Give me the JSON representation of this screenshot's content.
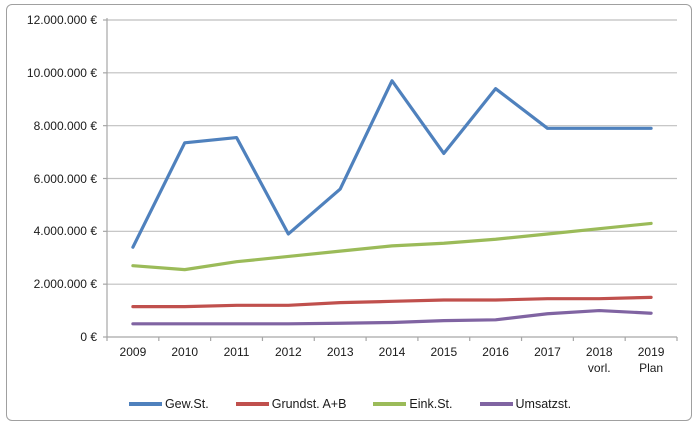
{
  "chart_data": {
    "type": "line",
    "title": "",
    "xlabel": "",
    "ylabel": "",
    "grid": true,
    "legend_position": "bottom",
    "categories": [
      {
        "label": "2009",
        "sublabel": ""
      },
      {
        "label": "2010",
        "sublabel": ""
      },
      {
        "label": "2011",
        "sublabel": ""
      },
      {
        "label": "2012",
        "sublabel": ""
      },
      {
        "label": "2013",
        "sublabel": ""
      },
      {
        "label": "2014",
        "sublabel": ""
      },
      {
        "label": "2015",
        "sublabel": ""
      },
      {
        "label": "2016",
        "sublabel": ""
      },
      {
        "label": "2017",
        "sublabel": ""
      },
      {
        "label": "2018",
        "sublabel": "vorl."
      },
      {
        "label": "2019",
        "sublabel": "Plan"
      }
    ],
    "y_axis": {
      "min": 0,
      "max": 12000000,
      "step": 2000000,
      "tick_labels": [
        "12.000.000 €",
        "10.000.000 €",
        "8.000.000 €",
        "6.000.000 €",
        "4.000.000 €",
        "2.000.000 €",
        "0 €"
      ]
    },
    "series": [
      {
        "name": "Gew.St.",
        "color": "#4F81BD",
        "values": [
          3400000,
          7350000,
          7550000,
          3900000,
          5600000,
          9700000,
          6950000,
          9400000,
          7900000,
          7900000,
          7900000
        ]
      },
      {
        "name": "Grundst. A+B",
        "color": "#C0504D",
        "values": [
          1150000,
          1150000,
          1200000,
          1200000,
          1300000,
          1350000,
          1400000,
          1400000,
          1450000,
          1450000,
          1500000
        ]
      },
      {
        "name": "Eink.St.",
        "color": "#9BBB59",
        "values": [
          2700000,
          2550000,
          2850000,
          3050000,
          3250000,
          3450000,
          3550000,
          3700000,
          3900000,
          4100000,
          4300000
        ]
      },
      {
        "name": "Umsatzst.",
        "color": "#8064A2",
        "values": [
          500000,
          500000,
          500000,
          500000,
          520000,
          550000,
          620000,
          650000,
          880000,
          1000000,
          900000
        ]
      }
    ],
    "colors": {
      "gridline": "#BFBFBF",
      "axis": "#A6A6A6",
      "text": "#1a1a1a",
      "frame_border": "#a0a0a0"
    }
  }
}
